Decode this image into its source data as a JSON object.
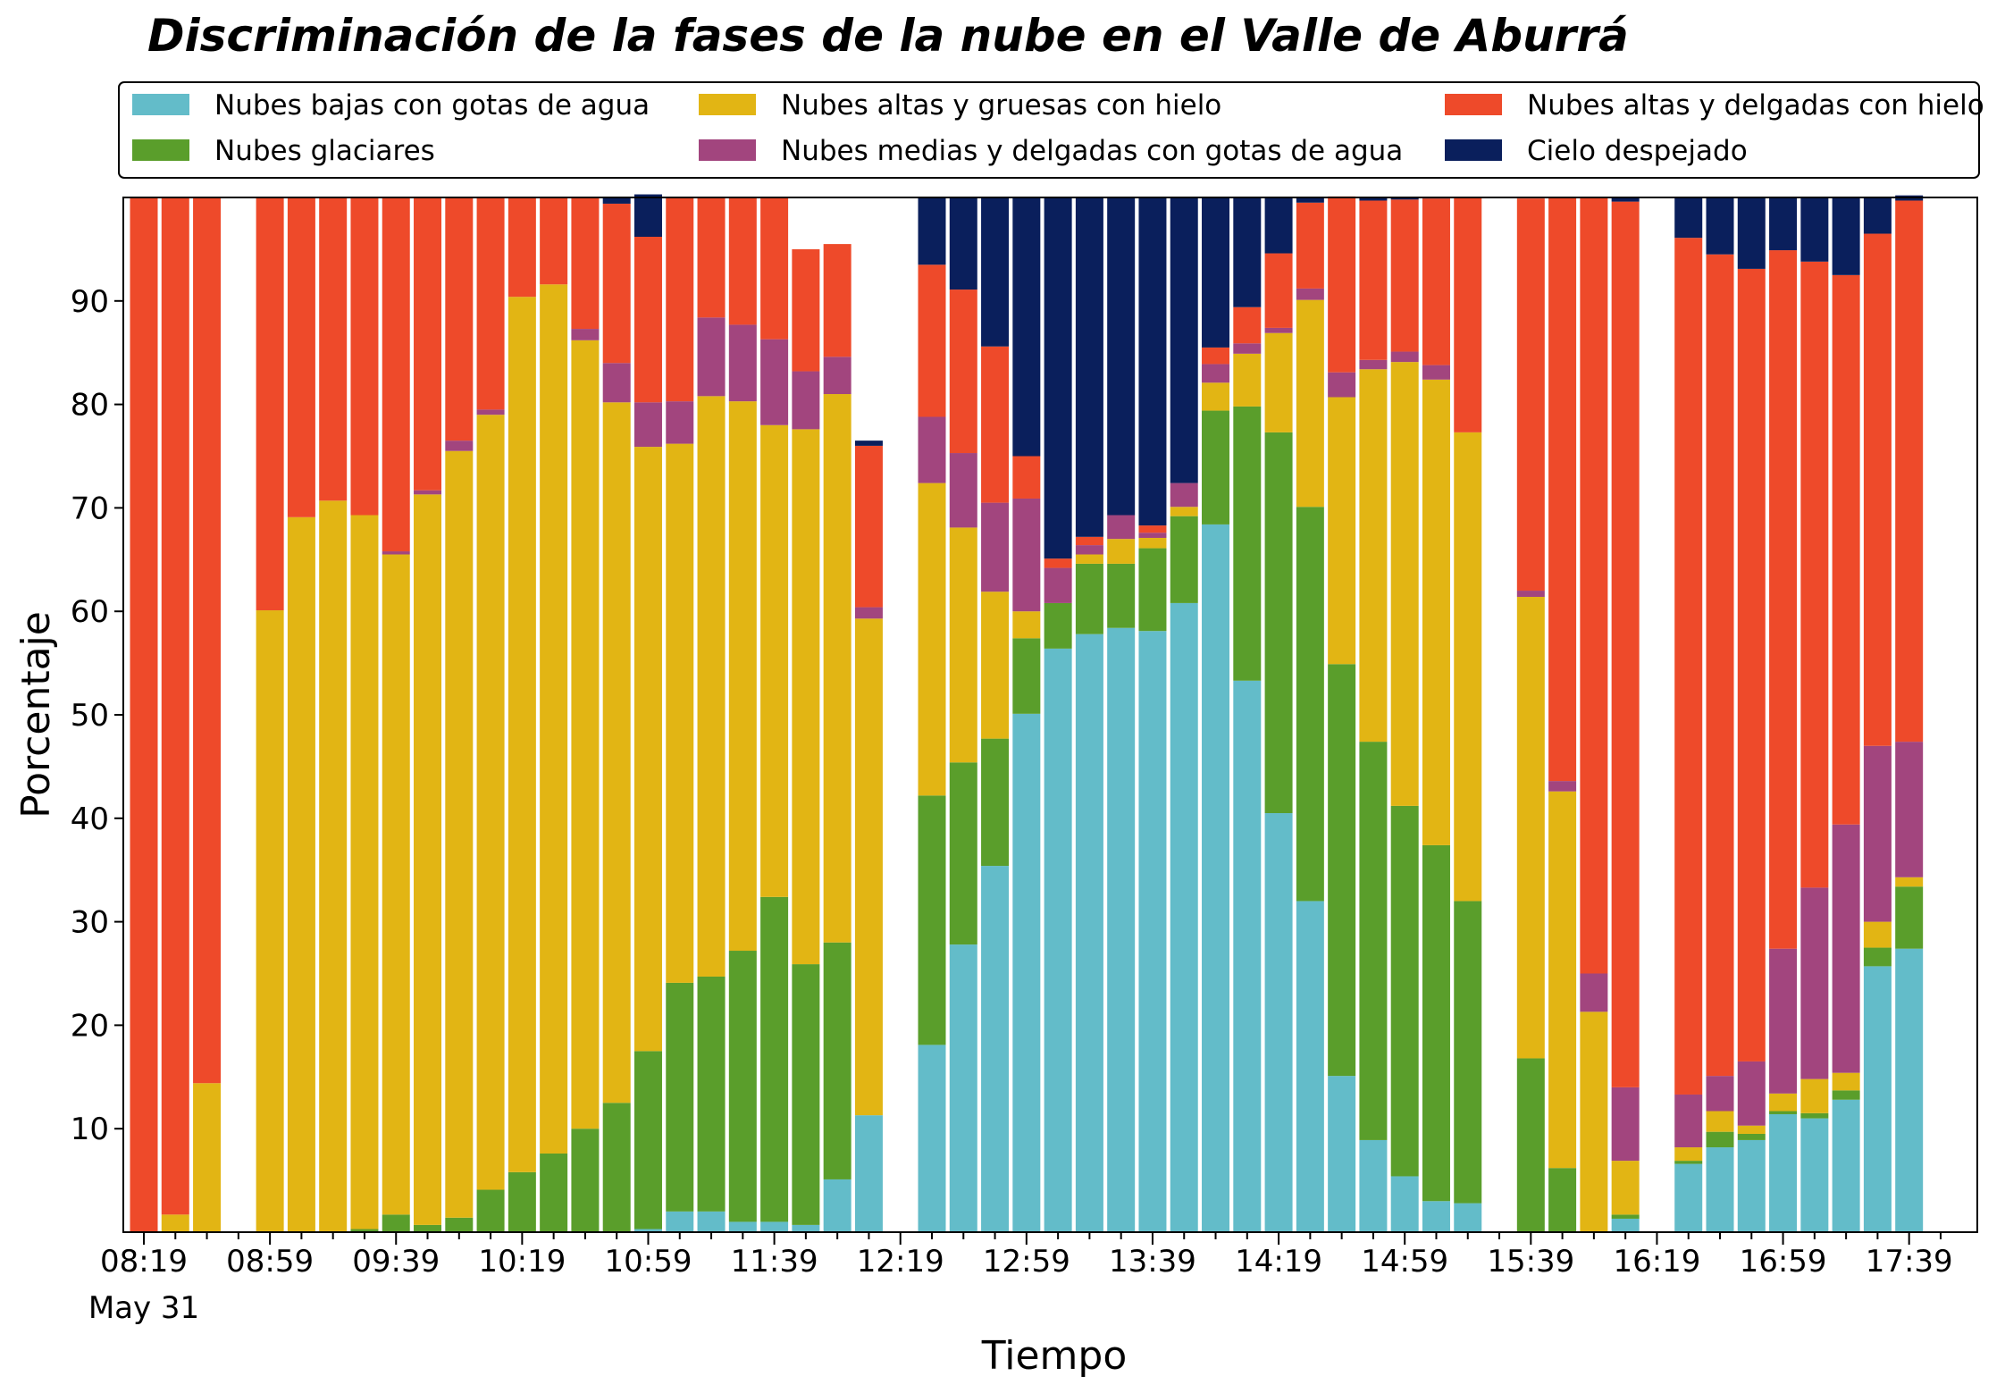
{
  "chart_data": {
    "type": "bar",
    "stacked": true,
    "title": "Discriminación de la fases de la nube en el Valle de Aburrá",
    "xlabel": "Tiempo",
    "ylabel": "Porcentaje",
    "ylim": [
      0,
      100
    ],
    "yticks": [
      10,
      20,
      30,
      40,
      50,
      60,
      70,
      80,
      90
    ],
    "xtick_labels": [
      "08:19",
      "08:59",
      "09:39",
      "10:19",
      "10:59",
      "11:39",
      "12:19",
      "12:59",
      "13:39",
      "14:19",
      "14:59",
      "15:39",
      "16:19",
      "16:59",
      "17:39"
    ],
    "xtick_sublabel": "May 31",
    "legend_position": "top",
    "grid": false,
    "categories": [
      "08:19",
      "08:29",
      "08:39",
      "08:49",
      "08:59",
      "09:09",
      "09:19",
      "09:29",
      "09:39",
      "09:49",
      "09:59",
      "10:09",
      "10:19",
      "10:29",
      "10:39",
      "10:49",
      "10:59",
      "11:09",
      "11:19",
      "11:29",
      "11:39",
      "11:49",
      "11:59",
      "12:09",
      "12:19",
      "12:29",
      "12:39",
      "12:49",
      "12:59",
      "13:09",
      "13:19",
      "13:29",
      "13:39",
      "13:49",
      "13:59",
      "14:09",
      "14:19",
      "14:29",
      "14:39",
      "14:49",
      "14:59",
      "15:09",
      "15:19",
      "15:29",
      "15:39",
      "15:49",
      "15:59",
      "16:09",
      "16:19",
      "16:29",
      "16:39",
      "16:49",
      "16:59",
      "17:09",
      "17:19",
      "17:29",
      "17:39",
      "17:49"
    ],
    "series": [
      {
        "name": "Nubes bajas con gotas de agua",
        "color": "#63BCC9",
        "values": [
          0,
          0,
          0,
          0,
          0,
          0,
          0,
          0,
          0,
          0,
          0,
          0,
          0,
          0,
          0,
          0,
          0.3,
          2.0,
          2.0,
          1.0,
          1.0,
          0.7,
          5.1,
          11.3,
          0,
          18.1,
          27.8,
          35.4,
          50.1,
          56.4,
          57.8,
          58.4,
          58.1,
          60.8,
          68.4,
          53.3,
          40.5,
          32.0,
          15.1,
          8.9,
          5.4,
          3.0,
          2.8,
          0,
          0,
          0,
          0,
          1.3,
          0,
          6.6,
          8.2,
          8.9,
          11.4,
          11.0,
          12.8,
          25.7,
          27.4,
          0
        ]
      },
      {
        "name": "Nubes glaciares",
        "color": "#5A9E2B",
        "values": [
          0,
          0,
          0,
          0,
          0,
          0,
          0,
          0.3,
          1.7,
          0.7,
          1.4,
          4.1,
          5.8,
          7.6,
          10.0,
          12.5,
          17.2,
          22.1,
          22.7,
          26.2,
          31.4,
          25.2,
          22.9,
          0,
          0,
          24.1,
          17.6,
          12.3,
          7.3,
          4.4,
          6.8,
          6.2,
          8.0,
          8.4,
          11.0,
          26.5,
          36.8,
          38.1,
          39.8,
          38.5,
          35.8,
          34.4,
          29.2,
          0,
          16.8,
          6.2,
          0,
          0.4,
          0,
          0.3,
          1.5,
          0.6,
          0.3,
          0.5,
          0.9,
          1.8,
          6.0,
          0
        ]
      },
      {
        "name": "Nubes altas y gruesas con hielo",
        "color": "#E2B514",
        "values": [
          0,
          1.7,
          14.4,
          0,
          60.1,
          69.1,
          70.7,
          69.0,
          63.8,
          70.6,
          74.1,
          74.9,
          84.6,
          84.0,
          76.2,
          67.7,
          58.4,
          52.1,
          56.1,
          53.1,
          45.6,
          51.7,
          53.0,
          48.0,
          0,
          30.2,
          22.7,
          14.2,
          2.6,
          0,
          0.9,
          2.4,
          1.0,
          0.9,
          2.7,
          5.1,
          9.6,
          20.0,
          25.8,
          36.0,
          42.9,
          45.0,
          45.3,
          0,
          44.6,
          36.4,
          21.3,
          5.2,
          0,
          1.3,
          2.0,
          0.8,
          1.7,
          3.3,
          1.7,
          2.5,
          0.9,
          0
        ]
      },
      {
        "name": "Nubes medias y delgadas con gotas de agua",
        "color": "#A2457E",
        "values": [
          0,
          0,
          0,
          0,
          0,
          0,
          0,
          0,
          0.3,
          0.4,
          1.0,
          0.5,
          0,
          0,
          1.1,
          3.8,
          4.3,
          4.1,
          7.6,
          7.4,
          8.3,
          5.6,
          3.6,
          1.1,
          0,
          6.4,
          7.2,
          8.6,
          10.9,
          3.4,
          0.9,
          2.3,
          0.5,
          2.3,
          1.8,
          1.0,
          0.5,
          1.1,
          2.4,
          0.9,
          1.0,
          1.4,
          0,
          0,
          0.6,
          1.0,
          3.7,
          7.1,
          0,
          5.1,
          3.4,
          6.2,
          14.0,
          18.5,
          24.0,
          17.0,
          13.1,
          0
        ]
      },
      {
        "name": "Nubes altas y delgadas con hielo",
        "color": "#EE4A2A",
        "values": [
          100,
          98.3,
          85.6,
          0,
          39.9,
          30.9,
          29.3,
          30.7,
          34.2,
          28.3,
          23.5,
          20.5,
          9.6,
          8.4,
          12.7,
          15.4,
          16.0,
          19.7,
          11.6,
          12.3,
          13.7,
          11.8,
          10.9,
          15.6,
          0,
          14.7,
          15.8,
          15.1,
          4.1,
          0.9,
          0.8,
          0,
          0.7,
          0,
          1.6,
          3.5,
          7.2,
          8.3,
          17.0,
          15.4,
          14.7,
          16.1,
          22.7,
          0,
          37.9,
          56.4,
          75.0,
          85.6,
          0,
          82.8,
          79.4,
          76.6,
          67.5,
          60.5,
          53.1,
          49.5,
          52.3,
          0
        ]
      },
      {
        "name": "Cielo despejado",
        "color": "#0A1F5C",
        "values": [
          0,
          0,
          0,
          0,
          0,
          0,
          0,
          0,
          0,
          0,
          0,
          0,
          0,
          0,
          0,
          0.6,
          4.1,
          0,
          0,
          0,
          0,
          0,
          0,
          0.5,
          0,
          6.5,
          8.9,
          14.4,
          25.0,
          34.9,
          32.8,
          30.7,
          31.7,
          27.6,
          14.5,
          10.6,
          5.4,
          0.5,
          0,
          0.3,
          0.2,
          0.1,
          0,
          0,
          0,
          0,
          0,
          0.4,
          0,
          3.9,
          5.5,
          6.9,
          5.1,
          6.2,
          7.5,
          3.5,
          0.5,
          0
        ]
      }
    ]
  }
}
